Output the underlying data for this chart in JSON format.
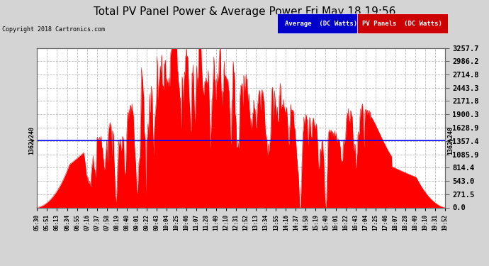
{
  "title": "Total PV Panel Power & Average Power Fri May 18 19:56",
  "copyright": "Copyright 2018 Cartronics.com",
  "avg_value": 1362.24,
  "y_max": 3257.7,
  "y_ticks": [
    0.0,
    271.5,
    543.0,
    814.4,
    1085.9,
    1357.4,
    1628.9,
    1900.3,
    2171.8,
    2443.3,
    2714.8,
    2986.2,
    3257.7
  ],
  "plot_bg_color": "#ffffff",
  "grid_color": "#aaaaaa",
  "fill_color": "#ff0000",
  "avg_line_color": "#0000ff",
  "title_color": "#000000",
  "fig_bg_color": "#d4d4d4",
  "legend_avg_color": "#0000cc",
  "legend_pv_color": "#cc0000",
  "x_start_min": 330,
  "x_end_min": 1192,
  "avg_label_color": "#000000",
  "tick_times_str": [
    "05:30",
    "05:51",
    "06:13",
    "06:34",
    "06:55",
    "07:16",
    "07:37",
    "07:58",
    "08:19",
    "08:40",
    "09:01",
    "09:22",
    "09:43",
    "10:04",
    "10:25",
    "10:46",
    "11:07",
    "11:28",
    "11:49",
    "12:10",
    "12:31",
    "12:52",
    "13:13",
    "13:34",
    "13:55",
    "14:16",
    "14:37",
    "14:58",
    "15:19",
    "15:40",
    "16:01",
    "16:22",
    "16:43",
    "17:04",
    "17:25",
    "17:46",
    "18:07",
    "18:28",
    "18:49",
    "19:10",
    "19:31",
    "19:52"
  ]
}
